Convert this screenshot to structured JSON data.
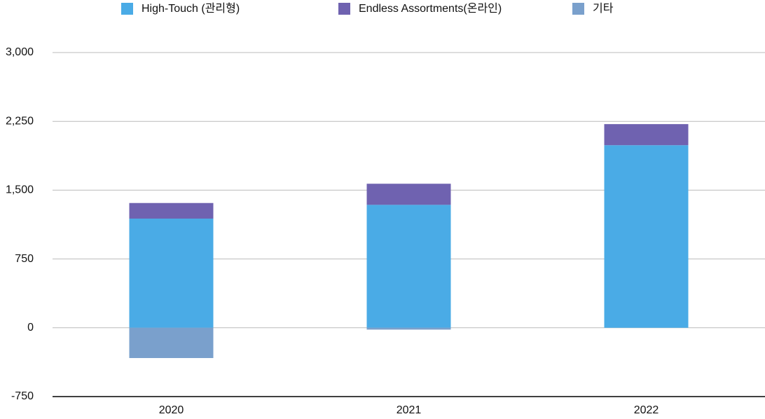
{
  "chart_data": {
    "type": "stacked-bar",
    "categories": [
      "2020",
      "2021",
      "2022"
    ],
    "series": [
      {
        "name": "High-Touch (관리형)",
        "color": "#4aabe6",
        "values": [
          1190,
          1340,
          1990
        ]
      },
      {
        "name": "Endless Assortments(온라인)",
        "color": "#6f62b0",
        "values": [
          170,
          230,
          230
        ]
      },
      {
        "name": "기타",
        "color": "#7aa0cc",
        "values": [
          -330,
          -20,
          0
        ]
      }
    ],
    "ylim": [
      -750,
      3000
    ],
    "yticks": [
      -750,
      0,
      750,
      {
        "value": 1500,
        "label": "1,500"
      },
      {
        "value": 2250,
        "label": "2,250"
      },
      {
        "value": 3000,
        "label": "3,000"
      }
    ],
    "grid": true,
    "legend": "top"
  }
}
